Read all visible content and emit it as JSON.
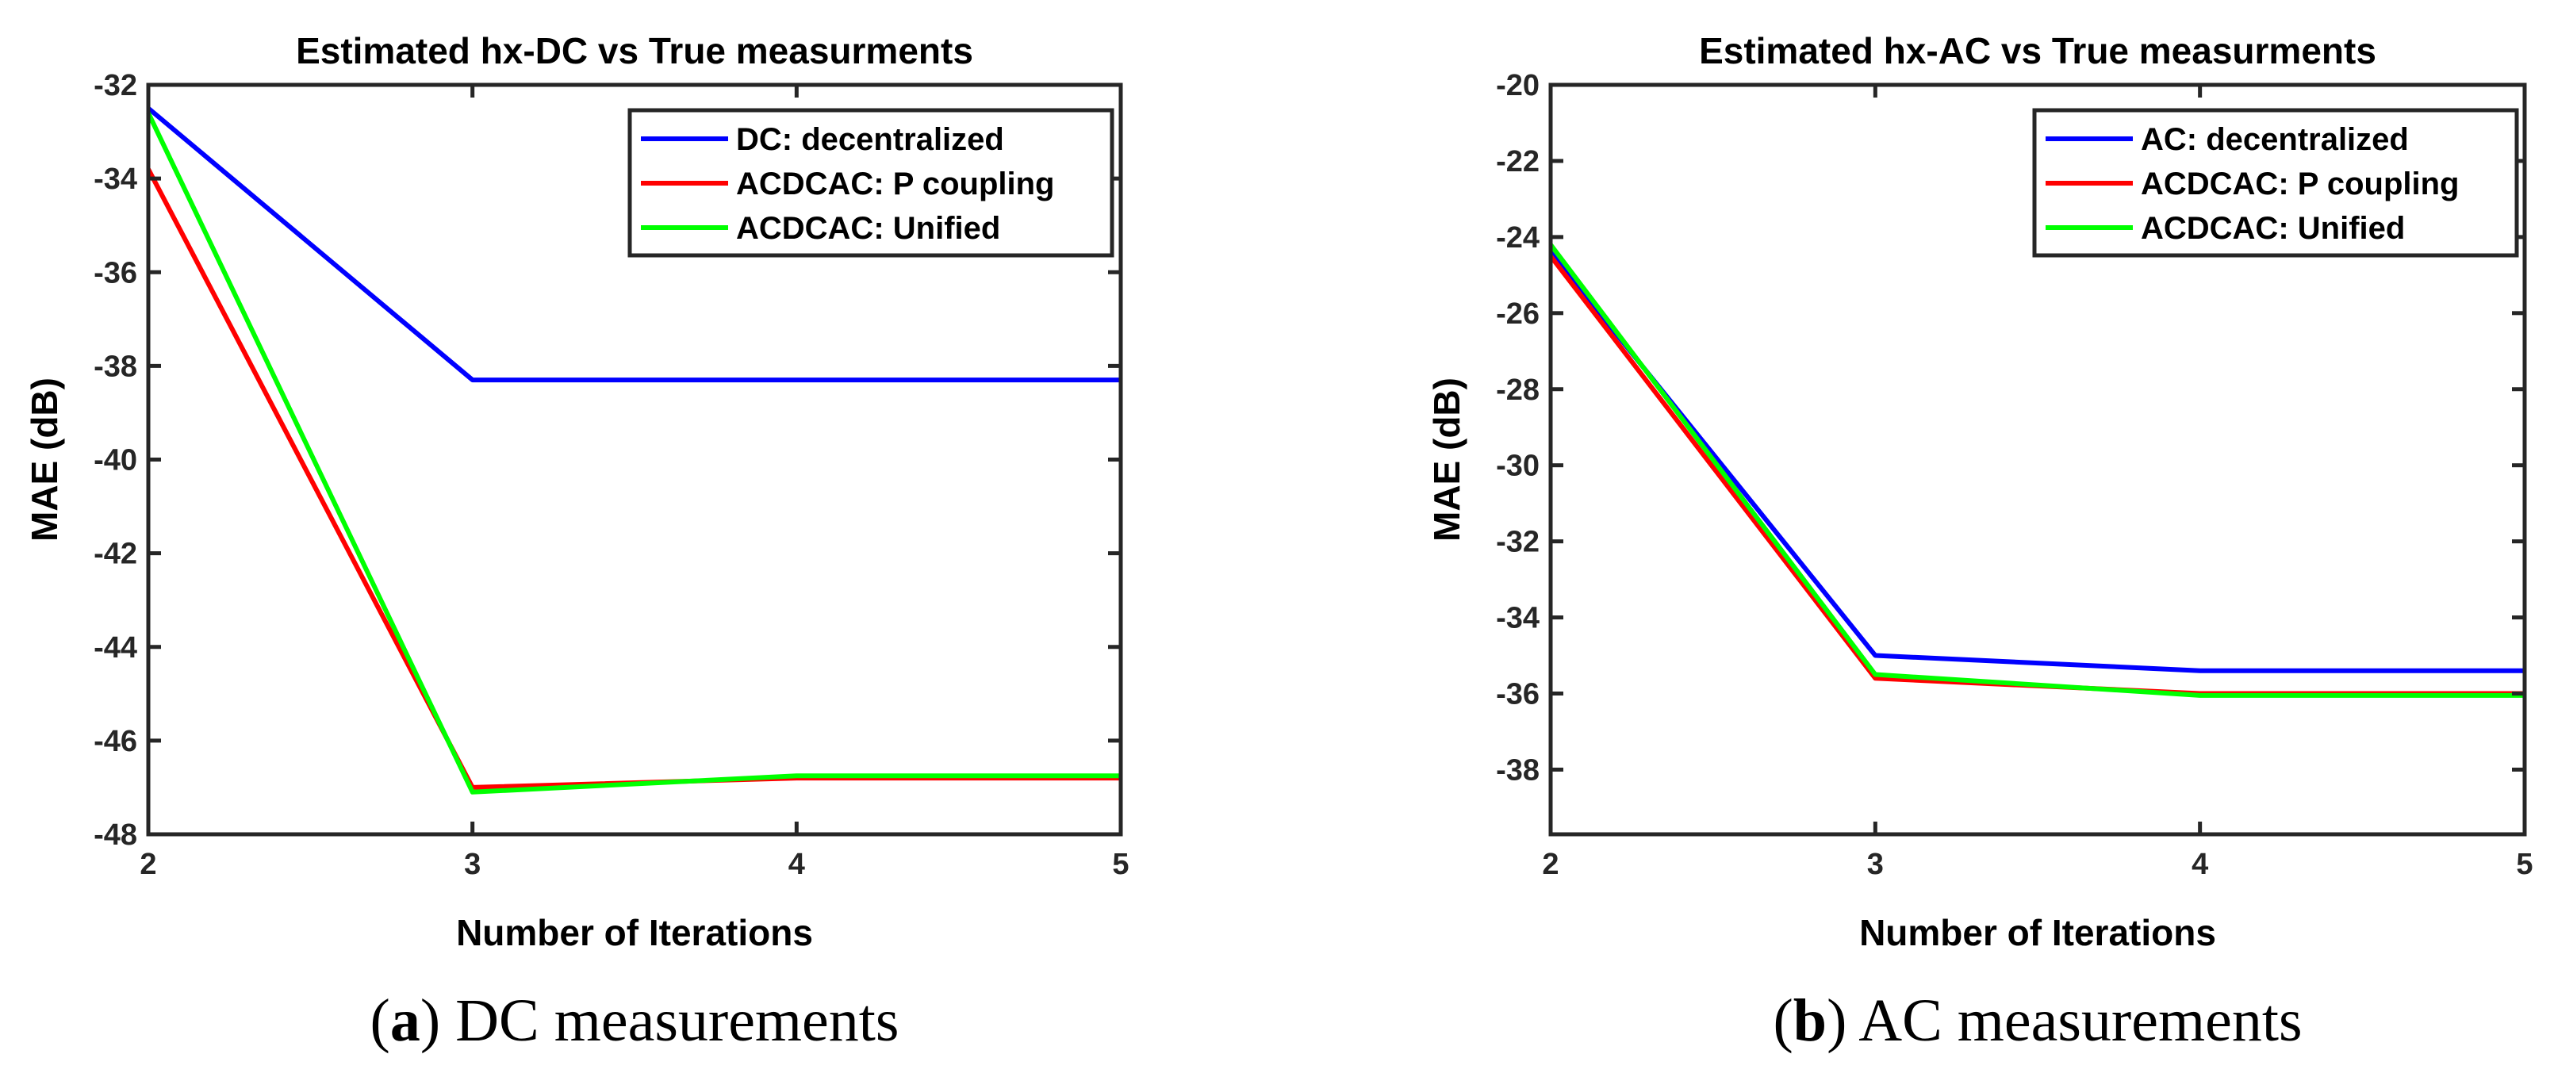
{
  "colors": {
    "blue": "#0000ff",
    "red": "#ff0000",
    "green": "#00ff00",
    "axis": "#262626"
  },
  "chart_data": [
    {
      "type": "line",
      "title": "Estimated hx-DC vs True measurments",
      "xlabel": "Number of Iterations",
      "ylabel": "MAE (dB)",
      "x": [
        2,
        3,
        4,
        5
      ],
      "xlim": [
        2,
        5
      ],
      "ylim": [
        -48,
        -32
      ],
      "xticks": [
        "2",
        "3",
        "4",
        "5"
      ],
      "yticks": [
        "-32",
        "-34",
        "-36",
        "-38",
        "-40",
        "-42",
        "-44",
        "-46",
        "-48"
      ],
      "legend_position": "top-right",
      "series": [
        {
          "name": "DC: decentralized",
          "color": "blue",
          "values": [
            -32.5,
            -38.3,
            -38.3,
            -38.3
          ]
        },
        {
          "name": "ACDCAC: P coupling",
          "color": "red",
          "values": [
            -33.8,
            -47.0,
            -46.8,
            -46.8
          ]
        },
        {
          "name": "ACDCAC: Unified",
          "color": "green",
          "values": [
            -32.6,
            -47.1,
            -46.75,
            -46.75
          ]
        }
      ],
      "caption_label": "a",
      "caption_text": "DC measurements"
    },
    {
      "type": "line",
      "title": "Estimated hx-AC vs True measurments",
      "xlabel": "Number of Iterations",
      "ylabel": "MAE (dB)",
      "x": [
        2,
        3,
        4,
        5
      ],
      "xlim": [
        2,
        5
      ],
      "ylim": [
        -39.7,
        -20
      ],
      "xticks": [
        "2",
        "3",
        "4",
        "5"
      ],
      "yticks": [
        "-20",
        "-22",
        "-24",
        "-26",
        "-28",
        "-30",
        "-32",
        "-34",
        "-36",
        "-38"
      ],
      "legend_position": "top-right",
      "series": [
        {
          "name": "AC: decentralized",
          "color": "blue",
          "values": [
            -24.4,
            -35.0,
            -35.4,
            -35.4
          ]
        },
        {
          "name": "ACDCAC: P coupling",
          "color": "red",
          "values": [
            -24.5,
            -35.6,
            -36.0,
            -36.0
          ]
        },
        {
          "name": "ACDCAC: Unified",
          "color": "green",
          "values": [
            -24.2,
            -35.5,
            -36.05,
            -36.05
          ]
        }
      ],
      "caption_label": "b",
      "caption_text": "AC measurements"
    }
  ]
}
